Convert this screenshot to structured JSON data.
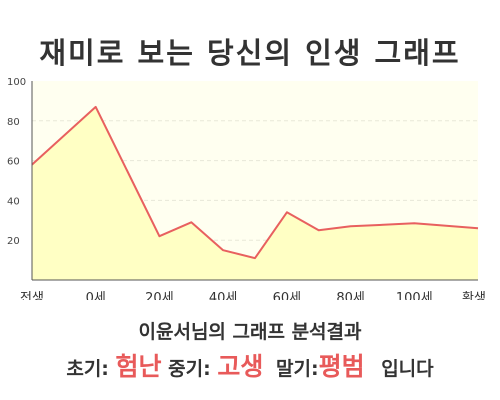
{
  "page_title": "재미로 보는 당신의 인생 그래프",
  "summary": "이윤서님의 그래프 분석결과",
  "result": {
    "early_label": "초기:",
    "early_value": "험난",
    "mid_label": "중기:",
    "mid_value": "고생",
    "late_label": "말기:",
    "late_value": "평범",
    "ending": "입니다"
  },
  "colors": {
    "line": "#e8605f",
    "fill": "#ffffc4",
    "plot_bg": "#fffff0",
    "grid": "#e8e8d8",
    "accent_text": "#e85a5a"
  },
  "chart_data": {
    "type": "area",
    "x_tick_labels": [
      "전생",
      "0세",
      "20세",
      "40세",
      "60세",
      "80세",
      "100세",
      "환생"
    ],
    "y_ticks": [
      20,
      40,
      60,
      80,
      100
    ],
    "ylim": [
      0,
      100
    ],
    "grid": true,
    "points": [
      {
        "x": 0,
        "y": 58
      },
      {
        "x": 1,
        "y": 87
      },
      {
        "x": 2,
        "y": 22
      },
      {
        "x": 2.5,
        "y": 29
      },
      {
        "x": 3,
        "y": 15
      },
      {
        "x": 3.5,
        "y": 11
      },
      {
        "x": 4,
        "y": 34
      },
      {
        "x": 4.5,
        "y": 25
      },
      {
        "x": 5,
        "y": 27
      },
      {
        "x": 6,
        "y": 28.5
      },
      {
        "x": 7,
        "y": 26
      }
    ]
  }
}
